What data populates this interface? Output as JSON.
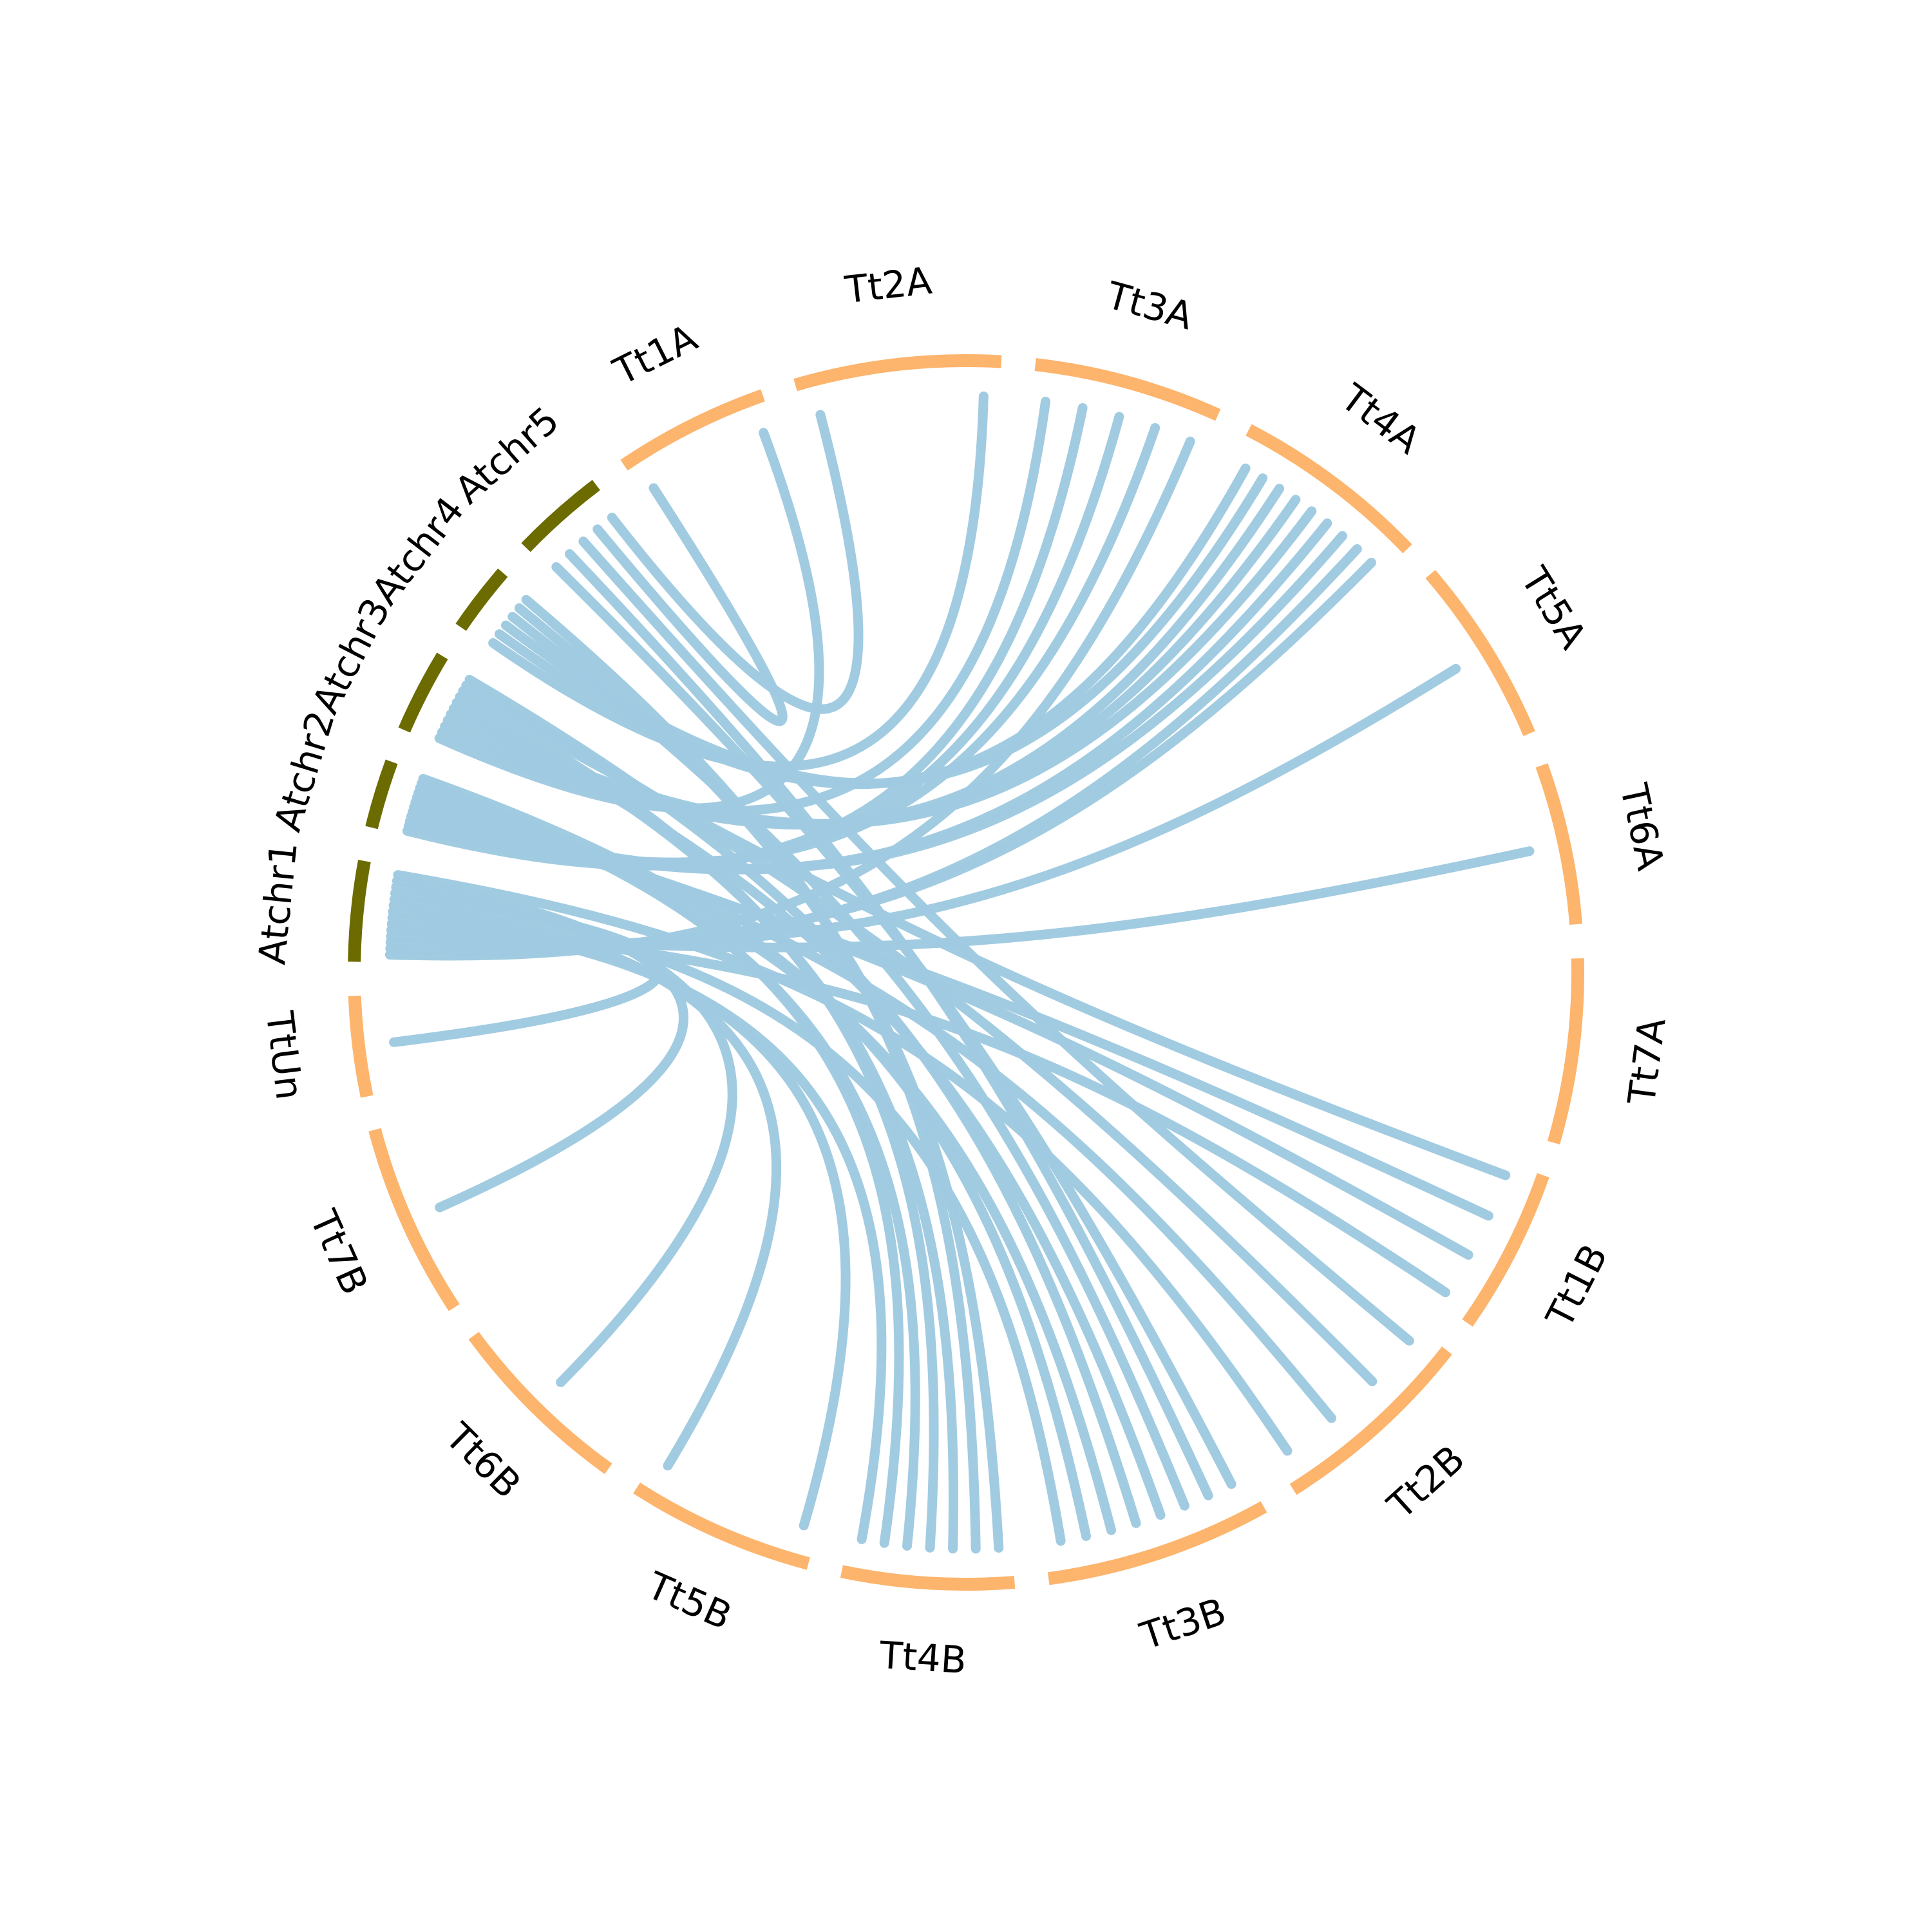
{
  "colors": {
    "arabidopsis": "#6b6b00",
    "triticum": "#fdb46c",
    "link": "#9fcae0",
    "label": "#000000",
    "background": "#ffffff"
  },
  "segments": [
    {
      "id": "Atchr1",
      "label": "Atchr1",
      "group": "arabidopsis"
    },
    {
      "id": "Atchr2",
      "label": "Atchr2",
      "group": "arabidopsis"
    },
    {
      "id": "Atchr3",
      "label": "Atchr3",
      "group": "arabidopsis"
    },
    {
      "id": "Atchr4",
      "label": "Atchr4",
      "group": "arabidopsis"
    },
    {
      "id": "Atchr5",
      "label": "Atchr5",
      "group": "arabidopsis"
    },
    {
      "id": "Tt1A",
      "label": "Tt1A",
      "group": "triticum"
    },
    {
      "id": "Tt2A",
      "label": "Tt2A",
      "group": "triticum"
    },
    {
      "id": "Tt3A",
      "label": "Tt3A",
      "group": "triticum"
    },
    {
      "id": "Tt4A",
      "label": "Tt4A",
      "group": "triticum"
    },
    {
      "id": "Tt5A",
      "label": "Tt5A",
      "group": "triticum"
    },
    {
      "id": "Tt6A",
      "label": "Tt6A",
      "group": "triticum"
    },
    {
      "id": "Tt7A",
      "label": "Tt7A",
      "group": "triticum"
    },
    {
      "id": "Tt1B",
      "label": "Tt1B",
      "group": "triticum"
    },
    {
      "id": "Tt2B",
      "label": "Tt2B",
      "group": "triticum"
    },
    {
      "id": "Tt3B",
      "label": "Tt3B",
      "group": "triticum"
    },
    {
      "id": "Tt4B",
      "label": "Tt4B",
      "group": "triticum"
    },
    {
      "id": "Tt5B",
      "label": "Tt5B",
      "group": "triticum"
    },
    {
      "id": "Tt6B",
      "label": "Tt6B",
      "group": "triticum"
    },
    {
      "id": "Tt7B",
      "label": "Tt7B",
      "group": "triticum"
    },
    {
      "id": "TtUn",
      "label": "TtUn",
      "group": "triticum"
    }
  ],
  "links": [
    [
      "Atchr5",
      "Tt3B"
    ],
    [
      "Atchr5",
      "Tt3B"
    ],
    [
      "Atchr5",
      "Tt2B"
    ],
    [
      "Atchr5",
      "Tt1A"
    ],
    [
      "Atchr5",
      "Tt2A"
    ],
    [
      "Atchr4",
      "Tt2A"
    ],
    [
      "Atchr4",
      "Tt4A"
    ],
    [
      "Atchr4",
      "Tt4A"
    ],
    [
      "Atchr4",
      "Tt3B"
    ],
    [
      "Atchr4",
      "Tt4B"
    ],
    [
      "Atchr4",
      "Tt4B"
    ],
    [
      "Atchr3",
      "Tt1A"
    ],
    [
      "Atchr3",
      "Tt3A"
    ],
    [
      "Atchr3",
      "Tt4A"
    ],
    [
      "Atchr3",
      "Tt4A"
    ],
    [
      "Atchr3",
      "Tt4A"
    ],
    [
      "Atchr3",
      "Tt3B"
    ],
    [
      "Atchr3",
      "Tt4B"
    ],
    [
      "Atchr3",
      "Tt4B"
    ],
    [
      "Atchr3",
      "Tt1B"
    ],
    [
      "Atchr3",
      "Tt2B"
    ],
    [
      "Atchr3",
      "Tt3B"
    ],
    [
      "Atchr2",
      "Tt3A"
    ],
    [
      "Atchr2",
      "Tt3A"
    ],
    [
      "Atchr2",
      "Tt3A"
    ],
    [
      "Atchr2",
      "Tt4A"
    ],
    [
      "Atchr2",
      "Tt4A"
    ],
    [
      "Atchr2",
      "Tt1B"
    ],
    [
      "Atchr2",
      "Tt1B"
    ],
    [
      "Atchr2",
      "Tt2B"
    ],
    [
      "Atchr2",
      "Tt3B"
    ],
    [
      "Atchr2",
      "Tt4B"
    ],
    [
      "Atchr2",
      "Tt4B"
    ],
    [
      "Atchr2",
      "Tt3B"
    ],
    [
      "Atchr1",
      "Tt3A"
    ],
    [
      "Atchr1",
      "Tt4A"
    ],
    [
      "Atchr1",
      "Tt4A"
    ],
    [
      "Atchr1",
      "Tt5A"
    ],
    [
      "Atchr1",
      "Tt6A"
    ],
    [
      "Atchr1",
      "Tt1B"
    ],
    [
      "Atchr1",
      "Tt4B"
    ],
    [
      "Atchr1",
      "Tt5B"
    ],
    [
      "Atchr1",
      "Tt5B"
    ],
    [
      "Atchr1",
      "Tt3B"
    ],
    [
      "Atchr1",
      "TtUn"
    ],
    [
      "Atchr1",
      "Tt7B"
    ],
    [
      "Atchr1",
      "Tt6B"
    ],
    [
      "Atchr1",
      "Tt2B"
    ]
  ]
}
